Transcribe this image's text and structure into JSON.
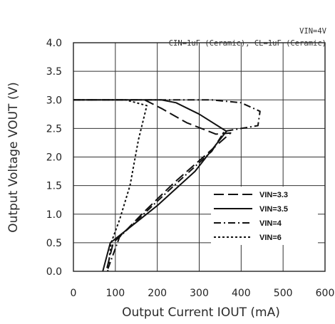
{
  "chart_data": {
    "type": "line",
    "title": "",
    "annotations": {
      "vin": "VIN=4V",
      "caps": "CIN=1uF (Ceramic), CL=1uF (Ceramic)"
    },
    "xlabel": "Output Current IOUT (mA)",
    "ylabel": "Output Voltage VOUT (V)",
    "xlim": [
      0,
      600
    ],
    "ylim": [
      0,
      4.0
    ],
    "xticks": [
      "0",
      "100",
      "200",
      "300",
      "400",
      "500",
      "600"
    ],
    "yticks": [
      "0.0",
      "0.5",
      "1.0",
      "1.5",
      "2.0",
      "2.5",
      "3.0",
      "3.5",
      "4.0"
    ],
    "grid": true,
    "legend_position": "bottom-right",
    "series": [
      {
        "name": "VIN=3.3",
        "dash": "long-dash",
        "points": [
          [
            0,
            3.0
          ],
          [
            170,
            3.0
          ],
          [
            210,
            2.85
          ],
          [
            270,
            2.6
          ],
          [
            340,
            2.4
          ],
          [
            375,
            2.42
          ],
          [
            240,
            1.55
          ],
          [
            170,
            1.05
          ],
          [
            130,
            0.75
          ],
          [
            95,
            0.5
          ],
          [
            78,
            0.0
          ]
        ]
      },
      {
        "name": "VIN=3.5",
        "dash": "solid",
        "points": [
          [
            0,
            3.0
          ],
          [
            210,
            3.0
          ],
          [
            245,
            2.95
          ],
          [
            300,
            2.75
          ],
          [
            365,
            2.45
          ],
          [
            290,
            1.75
          ],
          [
            200,
            1.15
          ],
          [
            140,
            0.8
          ],
          [
            88,
            0.5
          ],
          [
            70,
            0.0
          ]
        ]
      },
      {
        "name": "VIN=4",
        "dash": "dash-dot",
        "points": [
          [
            0,
            3.0
          ],
          [
            330,
            3.0
          ],
          [
            400,
            2.95
          ],
          [
            445,
            2.8
          ],
          [
            440,
            2.55
          ],
          [
            400,
            2.5
          ],
          [
            360,
            2.45
          ],
          [
            330,
            2.1
          ],
          [
            240,
            1.5
          ],
          [
            160,
            0.95
          ],
          [
            110,
            0.6
          ],
          [
            80,
            0.0
          ]
        ]
      },
      {
        "name": "VIN=6",
        "dash": "dotted",
        "points": [
          [
            0,
            3.0
          ],
          [
            125,
            3.0
          ],
          [
            150,
            2.95
          ],
          [
            175,
            2.9
          ],
          [
            155,
            2.3
          ],
          [
            135,
            1.5
          ],
          [
            110,
            0.9
          ],
          [
            90,
            0.5
          ],
          [
            82,
            0.0
          ]
        ]
      }
    ]
  }
}
